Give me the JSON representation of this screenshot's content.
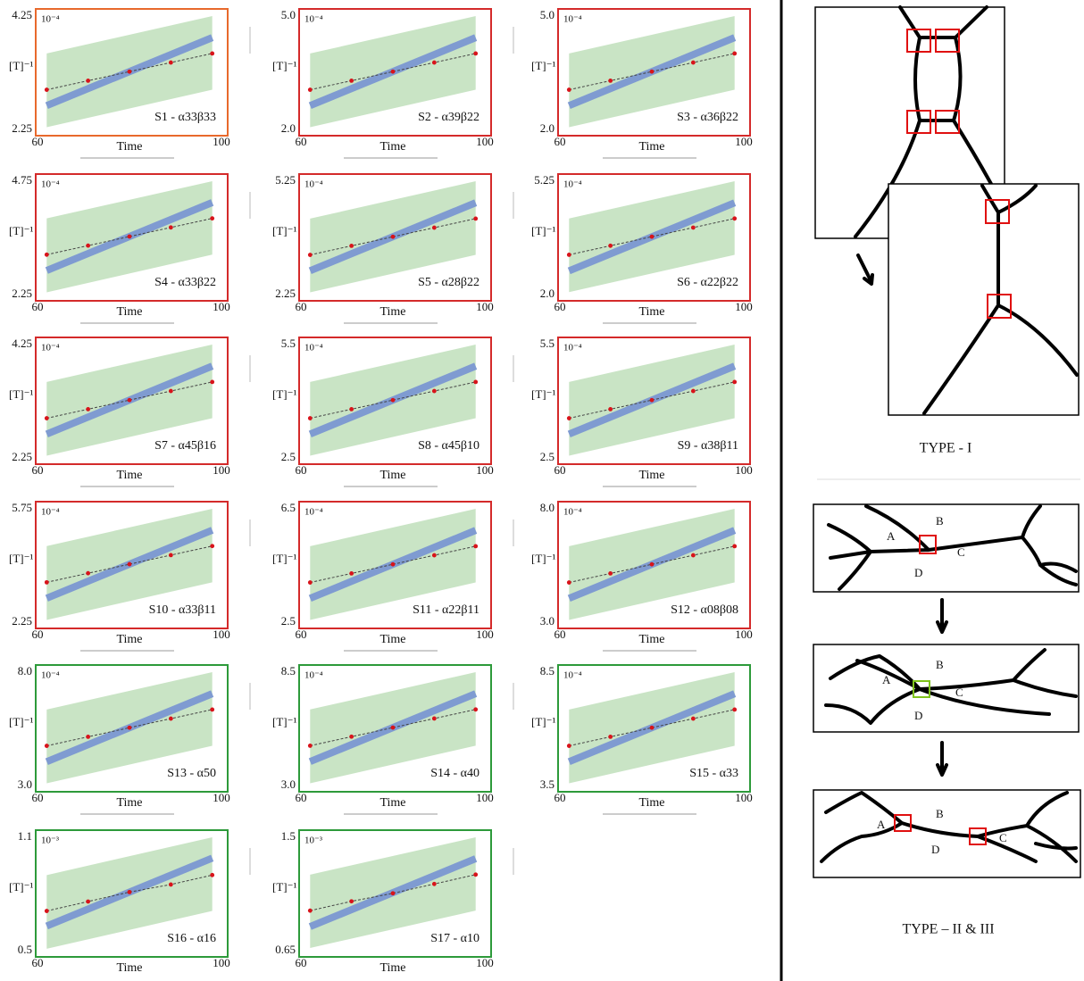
{
  "chart_data": [
    {
      "type": "line",
      "annotation": "S1 - α33β33",
      "exponent": "10⁻⁴",
      "y_label": "[T]⁻¹",
      "x_label": "Time",
      "frame_color": "#e8692c",
      "xlim": [
        60,
        100
      ],
      "xticks": [
        60,
        100
      ],
      "ylim": [
        2.25,
        4.25
      ],
      "yticks": [
        2.25,
        4.25
      ],
      "x": [
        62,
        71,
        80,
        89,
        98
      ],
      "series": [
        {
          "color": "#d8141b",
          "values": [
            2.95,
            3.11,
            3.27,
            3.43,
            3.59
          ]
        }
      ],
      "band_x": [
        62,
        98
      ],
      "model": {
        "color": "#7f9bd1",
        "values": [
          2.67,
          3.87
        ]
      },
      "range": {
        "color": "#c9e4c5",
        "lower": [
          2.29,
          2.95
        ],
        "upper": [
          3.59,
          4.25
        ]
      }
    },
    {
      "type": "line",
      "annotation": "S2 - α39β22",
      "exponent": "10⁻⁴",
      "y_label": "[T]⁻¹",
      "x_label": "Time",
      "frame_color": "#d42a2a",
      "xlim": [
        60,
        100
      ],
      "xticks": [
        60,
        100
      ],
      "ylim": [
        2,
        5
      ],
      "yticks": [
        {
          "value": 2,
          "label": "2.0"
        },
        {
          "value": 5,
          "label": "5.0"
        }
      ],
      "x": [
        62,
        71,
        80,
        89,
        98
      ],
      "series": [
        {
          "color": "#d8141b",
          "values": [
            3.05,
            3.29,
            3.53,
            3.77,
            4.01
          ]
        }
      ],
      "band_x": [
        62,
        98
      ],
      "model": {
        "color": "#7f9bd1",
        "values": [
          2.63,
          4.43
        ]
      },
      "range": {
        "color": "#c9e4c5",
        "lower": [
          2.06,
          3.05
        ],
        "upper": [
          4.01,
          5.0
        ]
      }
    },
    {
      "type": "line",
      "annotation": "S3 - α36β22",
      "exponent": "10⁻⁴",
      "y_label": "[T]⁻¹",
      "x_label": "Time",
      "frame_color": "#d42a2a",
      "xlim": [
        60,
        100
      ],
      "xticks": [
        60,
        100
      ],
      "ylim": [
        2,
        5
      ],
      "yticks": [
        {
          "value": 2,
          "label": "2.0"
        },
        {
          "value": 5,
          "label": "5.0"
        }
      ],
      "x": [
        62,
        71,
        80,
        89,
        98
      ],
      "series": [
        {
          "color": "#d8141b",
          "values": [
            3.05,
            3.29,
            3.53,
            3.77,
            4.01
          ]
        }
      ],
      "band_x": [
        62,
        98
      ],
      "model": {
        "color": "#7f9bd1",
        "values": [
          2.63,
          4.43
        ]
      },
      "range": {
        "color": "#c9e4c5",
        "lower": [
          2.06,
          3.05
        ],
        "upper": [
          4.01,
          5.0
        ]
      }
    },
    {
      "type": "line",
      "annotation": "S4 - α33β22",
      "exponent": "10⁻⁴",
      "y_label": "[T]⁻¹",
      "x_label": "Time",
      "frame_color": "#d42a2a",
      "xlim": [
        60,
        100
      ],
      "xticks": [
        60,
        100
      ],
      "ylim": [
        2.25,
        4.75
      ],
      "yticks": [
        2.25,
        4.75
      ],
      "x": [
        62,
        71,
        80,
        89,
        98
      ],
      "series": [
        {
          "color": "#d8141b",
          "values": [
            3.13,
            3.33,
            3.53,
            3.73,
            3.93
          ]
        }
      ],
      "band_x": [
        62,
        98
      ],
      "model": {
        "color": "#7f9bd1",
        "values": [
          2.78,
          4.28
        ]
      },
      "range": {
        "color": "#c9e4c5",
        "lower": [
          2.3,
          3.13
        ],
        "upper": [
          3.93,
          4.75
        ]
      }
    },
    {
      "type": "line",
      "annotation": "S5 - α28β22",
      "exponent": "10⁻⁴",
      "y_label": "[T]⁻¹",
      "x_label": "Time",
      "frame_color": "#d42a2a",
      "xlim": [
        60,
        100
      ],
      "xticks": [
        60,
        100
      ],
      "ylim": [
        2.25,
        5.25
      ],
      "yticks": [
        2.25,
        5.25
      ],
      "x": [
        62,
        71,
        80,
        89,
        98
      ],
      "series": [
        {
          "color": "#d8141b",
          "values": [
            3.3,
            3.54,
            3.78,
            4.02,
            4.26
          ]
        }
      ],
      "band_x": [
        62,
        98
      ],
      "model": {
        "color": "#7f9bd1",
        "values": [
          2.88,
          4.68
        ]
      },
      "range": {
        "color": "#c9e4c5",
        "lower": [
          2.31,
          3.3
        ],
        "upper": [
          4.26,
          5.25
        ]
      }
    },
    {
      "type": "line",
      "annotation": "S6 - α22β22",
      "exponent": "10⁻⁴",
      "y_label": "[T]⁻¹",
      "x_label": "Time",
      "frame_color": "#d42a2a",
      "xlim": [
        60,
        100
      ],
      "xticks": [
        60,
        100
      ],
      "ylim": [
        2,
        5.25
      ],
      "yticks": [
        {
          "value": 2,
          "label": "2.0"
        },
        5.25
      ],
      "x": [
        62,
        71,
        80,
        89,
        98
      ],
      "series": [
        {
          "color": "#d8141b",
          "values": [
            3.14,
            3.4,
            3.66,
            3.92,
            4.18
          ]
        }
      ],
      "band_x": [
        62,
        98
      ],
      "model": {
        "color": "#7f9bd1",
        "values": [
          2.68,
          4.63
        ]
      },
      "range": {
        "color": "#c9e4c5",
        "lower": [
          2.07,
          3.14
        ],
        "upper": [
          4.18,
          5.25
        ]
      }
    },
    {
      "type": "line",
      "annotation": "S7 - α45β16",
      "exponent": "10⁻⁴",
      "y_label": "[T]⁻¹",
      "x_label": "Time",
      "frame_color": "#d42a2a",
      "xlim": [
        60,
        100
      ],
      "xticks": [
        60,
        100
      ],
      "ylim": [
        2.25,
        4.25
      ],
      "yticks": [
        2.25,
        4.25
      ],
      "x": [
        62,
        71,
        80,
        89,
        98
      ],
      "series": [
        {
          "color": "#d8141b",
          "values": [
            2.95,
            3.11,
            3.27,
            3.43,
            3.59
          ]
        }
      ],
      "band_x": [
        62,
        98
      ],
      "model": {
        "color": "#7f9bd1",
        "values": [
          2.67,
          3.87
        ]
      },
      "range": {
        "color": "#c9e4c5",
        "lower": [
          2.29,
          2.95
        ],
        "upper": [
          3.59,
          4.25
        ]
      }
    },
    {
      "type": "line",
      "annotation": "S8 - α45β10",
      "exponent": "10⁻⁴",
      "y_label": "[T]⁻¹",
      "x_label": "Time",
      "frame_color": "#d42a2a",
      "xlim": [
        60,
        100
      ],
      "xticks": [
        60,
        100
      ],
      "ylim": [
        2.5,
        5.5
      ],
      "yticks": [
        2.5,
        5.5
      ],
      "x": [
        62,
        71,
        80,
        89,
        98
      ],
      "series": [
        {
          "color": "#d8141b",
          "values": [
            3.55,
            3.79,
            4.03,
            4.27,
            4.51
          ]
        }
      ],
      "band_x": [
        62,
        98
      ],
      "model": {
        "color": "#7f9bd1",
        "values": [
          3.13,
          4.93
        ]
      },
      "range": {
        "color": "#c9e4c5",
        "lower": [
          2.56,
          3.55
        ],
        "upper": [
          4.51,
          5.5
        ]
      }
    },
    {
      "type": "line",
      "annotation": "S9 - α38β11",
      "exponent": "10⁻⁴",
      "y_label": "[T]⁻¹",
      "x_label": "Time",
      "frame_color": "#d42a2a",
      "xlim": [
        60,
        100
      ],
      "xticks": [
        60,
        100
      ],
      "ylim": [
        2.5,
        5.5
      ],
      "yticks": [
        2.5,
        5.5
      ],
      "x": [
        62,
        71,
        80,
        89,
        98
      ],
      "series": [
        {
          "color": "#d8141b",
          "values": [
            3.55,
            3.79,
            4.03,
            4.27,
            4.51
          ]
        }
      ],
      "band_x": [
        62,
        98
      ],
      "model": {
        "color": "#7f9bd1",
        "values": [
          3.13,
          4.93
        ]
      },
      "range": {
        "color": "#c9e4c5",
        "lower": [
          2.56,
          3.55
        ],
        "upper": [
          4.51,
          5.5
        ]
      }
    },
    {
      "type": "line",
      "annotation": "S10 - α33β11",
      "exponent": "10⁻⁴",
      "y_label": "[T]⁻¹",
      "x_label": "Time",
      "frame_color": "#d42a2a",
      "xlim": [
        60,
        100
      ],
      "xticks": [
        60,
        100
      ],
      "ylim": [
        2.25,
        5.75
      ],
      "yticks": [
        2.25,
        5.75
      ],
      "x": [
        62,
        71,
        80,
        89,
        98
      ],
      "series": [
        {
          "color": "#d8141b",
          "values": [
            3.48,
            3.76,
            4.04,
            4.32,
            4.6
          ]
        }
      ],
      "band_x": [
        62,
        98
      ],
      "model": {
        "color": "#7f9bd1",
        "values": [
          2.99,
          5.09
        ]
      },
      "range": {
        "color": "#c9e4c5",
        "lower": [
          2.32,
          3.48
        ],
        "upper": [
          4.6,
          5.75
        ]
      }
    },
    {
      "type": "line",
      "annotation": "S11 - α22β11",
      "exponent": "10⁻⁴",
      "y_label": "[T]⁻¹",
      "x_label": "Time",
      "frame_color": "#d42a2a",
      "xlim": [
        60,
        100
      ],
      "xticks": [
        60,
        100
      ],
      "ylim": [
        2.5,
        6.5
      ],
      "yticks": [
        2.5,
        6.5
      ],
      "x": [
        62,
        71,
        80,
        89,
        98
      ],
      "series": [
        {
          "color": "#d8141b",
          "values": [
            3.9,
            4.22,
            4.54,
            4.86,
            5.18
          ]
        }
      ],
      "band_x": [
        62,
        98
      ],
      "model": {
        "color": "#7f9bd1",
        "values": [
          3.34,
          5.74
        ]
      },
      "range": {
        "color": "#c9e4c5",
        "lower": [
          2.58,
          3.9
        ],
        "upper": [
          5.18,
          6.5
        ]
      }
    },
    {
      "type": "line",
      "annotation": "S12 - α08β08",
      "exponent": "10⁻⁴",
      "y_label": "[T]⁻¹",
      "x_label": "Time",
      "frame_color": "#d42a2a",
      "xlim": [
        60,
        100
      ],
      "xticks": [
        60,
        100
      ],
      "ylim": [
        3,
        8
      ],
      "yticks": [
        {
          "value": 3,
          "label": "3.0"
        },
        {
          "value": 8,
          "label": "8.0"
        }
      ],
      "x": [
        62,
        71,
        80,
        89,
        98
      ],
      "series": [
        {
          "color": "#d8141b",
          "values": [
            4.75,
            5.15,
            5.55,
            5.95,
            6.35
          ]
        }
      ],
      "band_x": [
        62,
        98
      ],
      "model": {
        "color": "#7f9bd1",
        "values": [
          4.05,
          7.05
        ]
      },
      "range": {
        "color": "#c9e4c5",
        "lower": [
          3.1,
          4.75
        ],
        "upper": [
          6.35,
          8.0
        ]
      }
    },
    {
      "type": "line",
      "annotation": "S13 - α50",
      "exponent": "10⁻⁴",
      "y_label": "[T]⁻¹",
      "x_label": "Time",
      "frame_color": "#2d9a3a",
      "xlim": [
        60,
        100
      ],
      "xticks": [
        60,
        100
      ],
      "ylim": [
        3,
        8
      ],
      "yticks": [
        {
          "value": 3,
          "label": "3.0"
        },
        {
          "value": 8,
          "label": "8.0"
        }
      ],
      "x": [
        62,
        71,
        80,
        89,
        98
      ],
      "series": [
        {
          "color": "#d8141b",
          "values": [
            4.75,
            5.15,
            5.55,
            5.95,
            6.35
          ]
        }
      ],
      "band_x": [
        62,
        98
      ],
      "model": {
        "color": "#7f9bd1",
        "values": [
          4.05,
          7.05
        ]
      },
      "range": {
        "color": "#c9e4c5",
        "lower": [
          3.1,
          4.75
        ],
        "upper": [
          6.35,
          8.0
        ]
      }
    },
    {
      "type": "line",
      "annotation": "S14 - α40",
      "exponent": "10⁻⁴",
      "y_label": "[T]⁻¹",
      "x_label": "Time",
      "frame_color": "#2d9a3a",
      "xlim": [
        60,
        100
      ],
      "xticks": [
        60,
        100
      ],
      "ylim": [
        3,
        8.5
      ],
      "yticks": [
        {
          "value": 3,
          "label": "3.0"
        },
        8.5
      ],
      "x": [
        62,
        71,
        80,
        89,
        98
      ],
      "series": [
        {
          "color": "#d8141b",
          "values": [
            4.93,
            5.37,
            5.81,
            6.25,
            6.69
          ]
        }
      ],
      "band_x": [
        62,
        98
      ],
      "model": {
        "color": "#7f9bd1",
        "values": [
          4.16,
          7.46
        ]
      },
      "range": {
        "color": "#c9e4c5",
        "lower": [
          3.11,
          4.93
        ],
        "upper": [
          6.69,
          8.5
        ]
      }
    },
    {
      "type": "line",
      "annotation": "S15 - α33",
      "exponent": "10⁻⁴",
      "y_label": "[T]⁻¹",
      "x_label": "Time",
      "frame_color": "#2d9a3a",
      "xlim": [
        60,
        100
      ],
      "xticks": [
        60,
        100
      ],
      "ylim": [
        3.5,
        8.5
      ],
      "yticks": [
        3.5,
        8.5
      ],
      "x": [
        62,
        71,
        80,
        89,
        98
      ],
      "series": [
        {
          "color": "#d8141b",
          "values": [
            5.25,
            5.65,
            6.05,
            6.45,
            6.85
          ]
        }
      ],
      "band_x": [
        62,
        98
      ],
      "model": {
        "color": "#7f9bd1",
        "values": [
          4.55,
          7.55
        ]
      },
      "range": {
        "color": "#c9e4c5",
        "lower": [
          3.6,
          5.25
        ],
        "upper": [
          6.85,
          8.5
        ]
      }
    },
    {
      "type": "line",
      "annotation": "S16 - α16",
      "exponent": "10⁻³",
      "y_label": "[T]⁻¹",
      "x_label": "Time",
      "frame_color": "#2d9a3a",
      "xlim": [
        60,
        100
      ],
      "xticks": [
        60,
        100
      ],
      "ylim": [
        0.5,
        1.1
      ],
      "yticks": [
        0.5,
        1.1
      ],
      "x": [
        62,
        71,
        80,
        89,
        98
      ],
      "series": [
        {
          "color": "#d8141b",
          "values": [
            0.71,
            0.76,
            0.81,
            0.85,
            0.9
          ]
        }
      ],
      "band_x": [
        62,
        98
      ],
      "model": {
        "color": "#7f9bd1",
        "values": [
          0.63,
          0.99
        ]
      },
      "range": {
        "color": "#c9e4c5",
        "lower": [
          0.51,
          0.71
        ],
        "upper": [
          0.9,
          1.1
        ]
      }
    },
    {
      "type": "line",
      "annotation": "S17 - α10",
      "exponent": "10⁻³",
      "y_label": "[T]⁻¹",
      "x_label": "Time",
      "frame_color": "#2d9a3a",
      "xlim": [
        60,
        100
      ],
      "xticks": [
        60,
        100
      ],
      "ylim": [
        0.65,
        1.5
      ],
      "yticks": [
        0.65,
        1.5
      ],
      "x": [
        62,
        71,
        80,
        89,
        98
      ],
      "series": [
        {
          "color": "#d8141b",
          "values": [
            0.95,
            1.02,
            1.08,
            1.15,
            1.22
          ]
        }
      ],
      "band_x": [
        62,
        98
      ],
      "model": {
        "color": "#7f9bd1",
        "values": [
          0.83,
          1.34
        ]
      },
      "range": {
        "color": "#c9e4c5",
        "lower": [
          0.67,
          0.95
        ],
        "upper": [
          1.22,
          1.5
        ]
      }
    }
  ],
  "diagram": {
    "type_i_label": "TYPE - I",
    "type_ii_iii_label": "TYPE – II & III",
    "panels": [
      {
        "labels": [
          "A",
          "B",
          "C",
          "D"
        ]
      },
      {
        "labels": [
          "A",
          "B",
          "C",
          "D"
        ]
      },
      {
        "labels": [
          "A",
          "B",
          "C",
          "D"
        ]
      }
    ]
  }
}
